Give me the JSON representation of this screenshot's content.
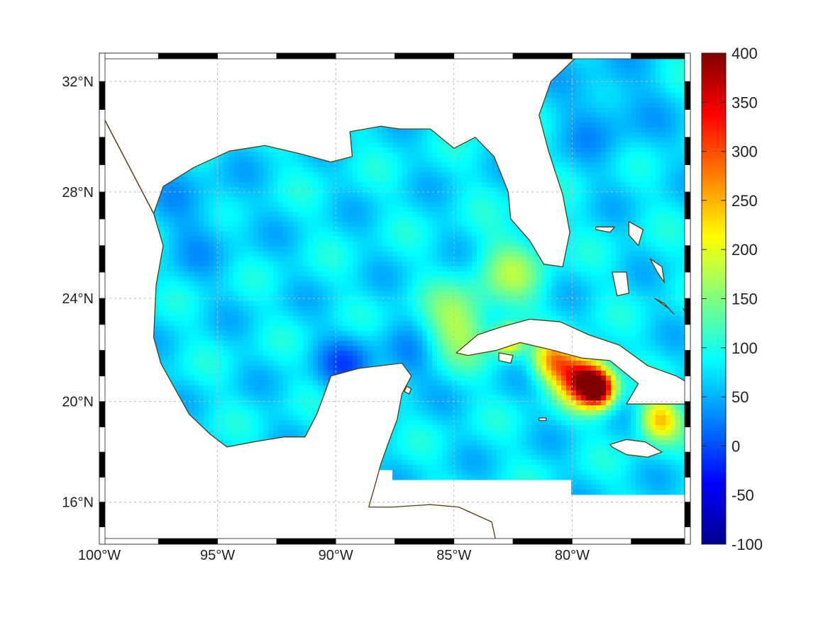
{
  "map": {
    "type": "heatmap",
    "projection": "mercator",
    "lon_range": [
      -100,
      -75
    ],
    "lat_range": [
      14.3,
      33
    ],
    "lon_ticks": [
      {
        "value": -100,
        "label": "100°W"
      },
      {
        "value": -95,
        "label": "95°W"
      },
      {
        "value": -90,
        "label": "90°W"
      },
      {
        "value": -85,
        "label": "85°W"
      },
      {
        "value": -80,
        "label": "80°W"
      }
    ],
    "lat_ticks": [
      {
        "value": 16,
        "label": "16°N"
      },
      {
        "value": 20,
        "label": "20°N"
      },
      {
        "value": 24,
        "label": "24°N"
      },
      {
        "value": 28,
        "label": "28°N"
      },
      {
        "value": 32,
        "label": "32°N"
      }
    ],
    "grid": true,
    "frame": "black-white-checkered",
    "coastline_color": "#5a3a0a",
    "colormap": "jet",
    "background_field_value": 75,
    "hotspots": [
      {
        "lon": -79.6,
        "lat": 20.9,
        "value": 340,
        "sigma_deg": 0.7
      },
      {
        "lon": -78.9,
        "lat": 20.5,
        "value": 370,
        "sigma_deg": 0.5
      },
      {
        "lon": -80.8,
        "lat": 21.6,
        "value": 240,
        "sigma_deg": 0.6
      },
      {
        "lon": -82.7,
        "lat": 22.4,
        "value": 250,
        "sigma_deg": 0.4
      },
      {
        "lon": -76.3,
        "lat": 19.3,
        "value": 240,
        "sigma_deg": 0.6
      },
      {
        "lon": -84.8,
        "lat": 23.0,
        "value": 170,
        "sigma_deg": 1.0
      },
      {
        "lon": -82.5,
        "lat": 25.0,
        "value": 150,
        "sigma_deg": 1.0
      },
      {
        "lon": -89.5,
        "lat": 21.3,
        "value": 15,
        "sigma_deg": 0.9
      },
      {
        "lon": -87.0,
        "lat": 21.5,
        "value": 35,
        "sigma_deg": 0.8
      },
      {
        "lon": -78.5,
        "lat": 31.0,
        "value": 40,
        "sigma_deg": 1.3
      },
      {
        "lon": -96.0,
        "lat": 27.0,
        "value": 50,
        "sigma_deg": 1.5
      }
    ]
  },
  "colorbar": {
    "min": -100,
    "max": 400,
    "ticks": [
      {
        "value": 400,
        "label": "400"
      },
      {
        "value": 350,
        "label": "350"
      },
      {
        "value": 300,
        "label": "300"
      },
      {
        "value": 250,
        "label": "250"
      },
      {
        "value": 200,
        "label": "200"
      },
      {
        "value": 150,
        "label": "150"
      },
      {
        "value": 100,
        "label": "100"
      },
      {
        "value": 50,
        "label": "50"
      },
      {
        "value": 0,
        "label": "0"
      },
      {
        "value": -50,
        "label": "-50"
      },
      {
        "value": -100,
        "label": "-100"
      }
    ]
  }
}
